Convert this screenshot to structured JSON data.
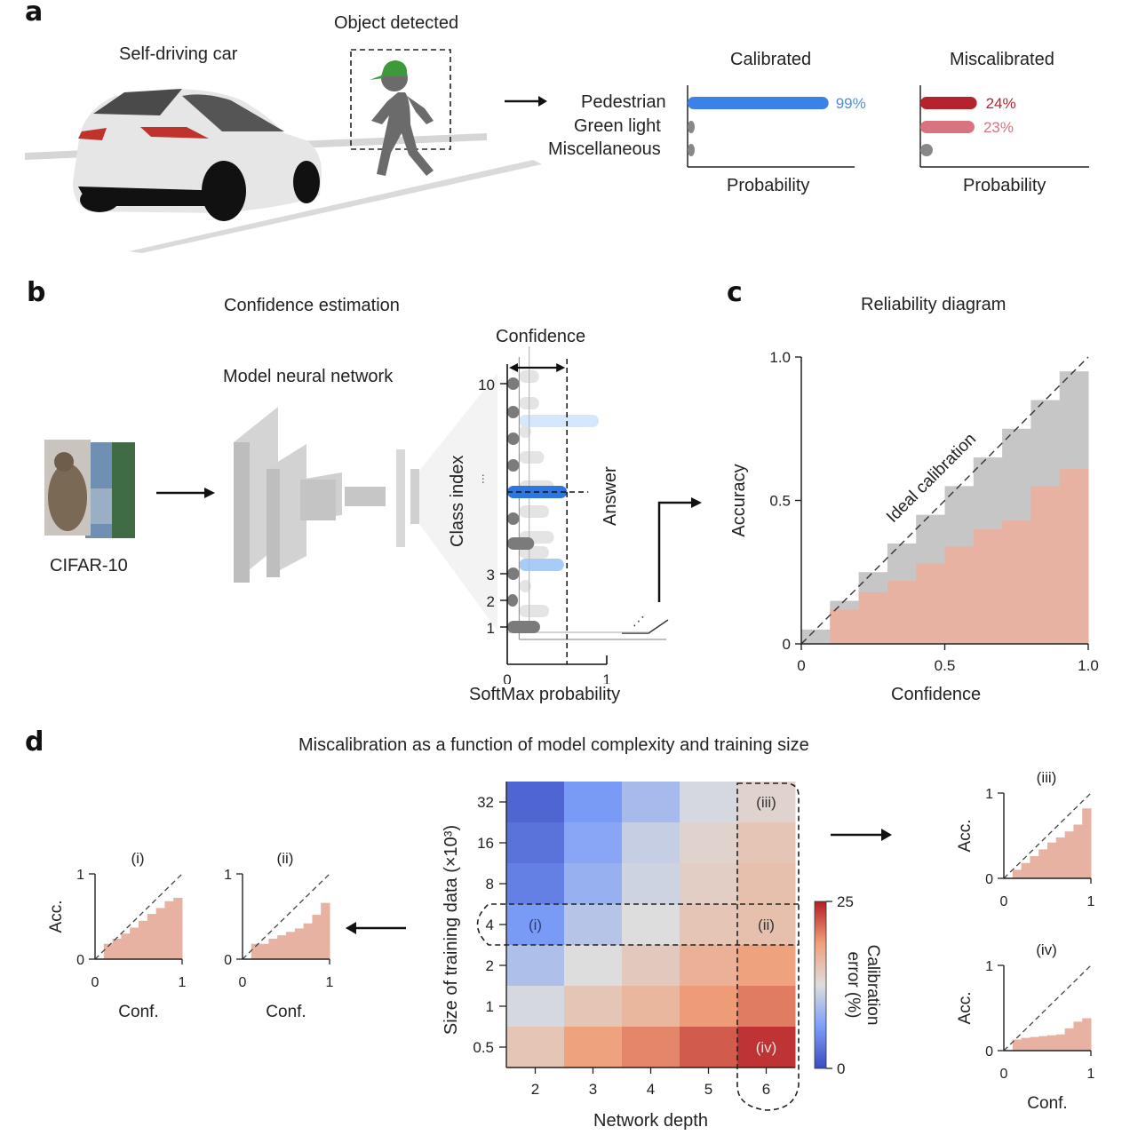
{
  "panel_a": {
    "letter": "a",
    "car_label": "Self-driving car",
    "object_label": "Object detected",
    "calibrated_title": "Calibrated",
    "miscalibrated_title": "Miscalibrated",
    "xlabel": "Probability",
    "classes": [
      "Pedestrian",
      "Green light",
      "Miscellaneous"
    ],
    "calibrated_values": [
      99,
      1,
      1
    ],
    "calibrated_labels": [
      "99%",
      "",
      ""
    ],
    "miscalibrated_values": [
      24,
      23,
      3
    ],
    "miscalibrated_labels": [
      "24%",
      "23%",
      ""
    ],
    "colors": {
      "calibrated": "#3b82e8",
      "calibrated_label": "#4a90d9",
      "mis_strong": "#b5232e",
      "mis_weak": "#d8737f",
      "minor": "#888888",
      "cap": "#3d9a3a",
      "person": "#6b6b6b"
    }
  },
  "panel_b": {
    "letter": "b",
    "title": "Confidence estimation",
    "network_label": "Model neural network",
    "dataset_label": "CIFAR-10",
    "confidence_label": "Confidence",
    "answer_label": "Answer",
    "ylabel": "Class index",
    "xlabel": "SoftMax probability",
    "yticks": [
      "10",
      "...",
      "3",
      "2",
      "1"
    ],
    "xticks": [
      "0",
      "1"
    ],
    "confidence_value": 0.6
  },
  "panel_c": {
    "letter": "c",
    "title": "Reliability diagram",
    "annotation": "Ideal calibration",
    "xlabel": "Confidence",
    "ylabel": "Accuracy",
    "xticks": [
      "0",
      "0.5",
      "1.0"
    ],
    "yticks": [
      "0",
      "0.5",
      "1.0"
    ]
  },
  "panel_d": {
    "letter": "d",
    "title": "Miscalibration as a function of model complexity and training size",
    "xlabel": "Network depth",
    "ylabel": "Size of training data (×10³)",
    "colorbar_label": "Calibration error (%)",
    "colorbar_ticks": [
      "0",
      "25"
    ],
    "annotations": [
      "(i)",
      "(ii)",
      "(iii)",
      "(iv)"
    ],
    "mini_xlabel": "Conf.",
    "mini_ylabel": "Acc.",
    "mini_ticks": [
      "0",
      "1"
    ]
  },
  "chart_data": [
    {
      "id": "a-calibrated",
      "type": "bar",
      "title": "Calibrated",
      "categories": [
        "Pedestrian",
        "Green light",
        "Miscellaneous"
      ],
      "values": [
        99,
        1,
        1
      ],
      "xlabel": "Probability",
      "ylabel": "",
      "xlim": [
        0,
        100
      ]
    },
    {
      "id": "a-miscalibrated",
      "type": "bar",
      "title": "Miscalibrated",
      "categories": [
        "Pedestrian",
        "Green light",
        "Miscellaneous"
      ],
      "values": [
        24,
        23,
        3
      ],
      "xlabel": "Probability",
      "ylabel": "",
      "xlim": [
        0,
        100
      ]
    },
    {
      "id": "b-softmax",
      "type": "bar",
      "title": "",
      "categories": [
        "1",
        "2",
        "3",
        "4",
        "5",
        "6",
        "7",
        "8",
        "9",
        "10"
      ],
      "values": [
        0.33,
        0.06,
        0.12,
        0.27,
        0.12,
        0.6,
        0.12,
        0.12,
        0.12,
        0.12
      ],
      "answer_class_index": 6,
      "xlabel": "SoftMax probability",
      "ylabel": "Class index",
      "xlim": [
        0,
        1
      ]
    },
    {
      "id": "c-reliability",
      "type": "bar",
      "title": "Reliability diagram",
      "bins": [
        0.05,
        0.15,
        0.25,
        0.35,
        0.45,
        0.55,
        0.65,
        0.75,
        0.85,
        0.95
      ],
      "series": [
        {
          "name": "Expected (gap)",
          "values": [
            0.05,
            0.15,
            0.25,
            0.35,
            0.45,
            0.55,
            0.65,
            0.75,
            0.85,
            0.95
          ]
        },
        {
          "name": "Accuracy",
          "values": [
            0.0,
            0.12,
            0.18,
            0.22,
            0.28,
            0.34,
            0.4,
            0.43,
            0.55,
            0.61
          ]
        }
      ],
      "xlabel": "Confidence",
      "ylabel": "Accuracy",
      "xlim": [
        0,
        1
      ],
      "ylim": [
        0,
        1
      ],
      "annotation": "Ideal calibration"
    },
    {
      "id": "d-heatmap",
      "type": "heatmap",
      "title": "Miscalibration as a function of model complexity and training size",
      "x": [
        "2",
        "3",
        "4",
        "5",
        "6"
      ],
      "y": [
        "32",
        "16",
        "8",
        "4",
        "2",
        "1",
        "0.5"
      ],
      "values": [
        [
          2,
          6,
          9,
          12,
          13.5
        ],
        [
          3,
          7,
          11,
          13.5,
          15
        ],
        [
          4,
          8,
          11.5,
          14,
          15.5
        ],
        [
          6,
          10,
          12.5,
          15,
          15.5
        ],
        [
          9.5,
          12.5,
          14.5,
          17,
          18.5
        ],
        [
          12,
          15,
          16.5,
          19,
          20.5
        ],
        [
          15,
          18.5,
          20,
          22,
          24
        ]
      ],
      "xlabel": "Network depth",
      "ylabel": "Size of training data (×10³)",
      "colorbar": {
        "label": "Calibration error (%)",
        "range": [
          0,
          25
        ]
      }
    },
    {
      "id": "d-i",
      "type": "bar",
      "title": "(i)",
      "values": [
        0.18,
        0.24,
        0.3,
        0.37,
        0.45,
        0.53,
        0.6,
        0.68,
        0.72
      ],
      "xlabel": "Conf.",
      "ylabel": "Acc.",
      "xlim": [
        0,
        1
      ],
      "ylim": [
        0,
        1
      ]
    },
    {
      "id": "d-ii",
      "type": "bar",
      "title": "(ii)",
      "values": [
        0.18,
        0.18,
        0.24,
        0.28,
        0.32,
        0.36,
        0.42,
        0.52,
        0.66
      ],
      "xlabel": "Conf.",
      "ylabel": "Acc.",
      "xlim": [
        0,
        1
      ],
      "ylim": [
        0,
        1
      ]
    },
    {
      "id": "d-iii",
      "type": "bar",
      "title": "(iii)",
      "values": [
        0.1,
        0.18,
        0.26,
        0.34,
        0.42,
        0.48,
        0.55,
        0.63,
        0.82
      ],
      "xlabel": "Conf.",
      "ylabel": "Acc.",
      "xlim": [
        0,
        1
      ],
      "ylim": [
        0,
        1
      ]
    },
    {
      "id": "d-iv",
      "type": "bar",
      "title": "(iv)",
      "values": [
        0.13,
        0.15,
        0.16,
        0.17,
        0.18,
        0.19,
        0.26,
        0.34,
        0.38
      ],
      "xlabel": "Conf.",
      "ylabel": "Acc.",
      "xlim": [
        0,
        1
      ],
      "ylim": [
        0,
        1
      ]
    }
  ]
}
